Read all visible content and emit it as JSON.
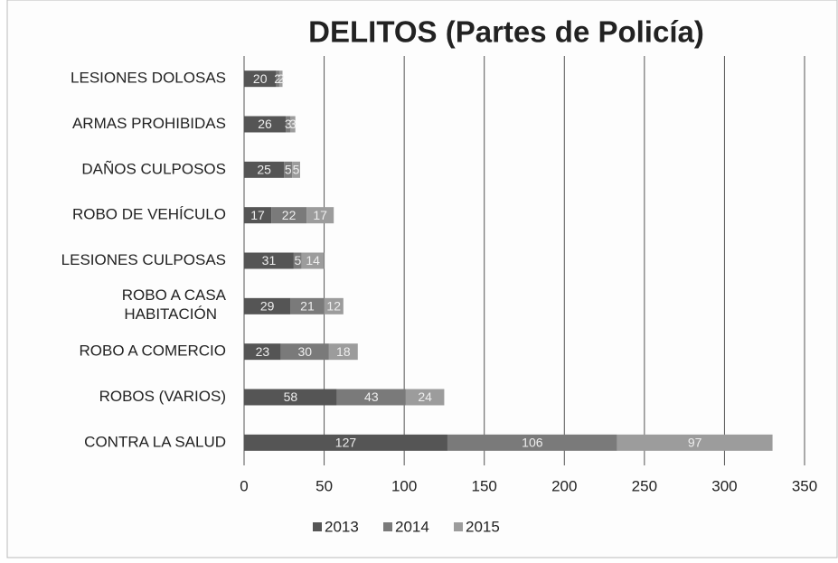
{
  "chart_data": {
    "type": "bar",
    "orientation": "horizontal",
    "stacked": true,
    "title": "DELITOS (Partes de Policía)",
    "categories": [
      "LESIONES DOLOSAS",
      "ARMAS PROHIBIDAS",
      "DAÑOS CULPOSOS",
      "ROBO DE VEHÍCULO",
      "LESIONES CULPOSAS",
      "ROBO A CASA HABITACIÓN",
      "ROBO A COMERCIO",
      "ROBOS (VARIOS)",
      "CONTRA LA SALUD"
    ],
    "series": [
      {
        "name": "2013",
        "color": "#555555",
        "values": [
          20,
          26,
          25,
          17,
          31,
          29,
          23,
          58,
          127
        ]
      },
      {
        "name": "2014",
        "color": "#7a7a7a",
        "values": [
          2,
          3,
          5,
          22,
          5,
          21,
          30,
          43,
          106
        ]
      },
      {
        "name": "2015",
        "color": "#9c9c9c",
        "values": [
          2,
          3,
          5,
          17,
          14,
          12,
          18,
          24,
          97
        ]
      }
    ],
    "xlim": [
      0,
      350
    ],
    "xticks": [
      0,
      50,
      100,
      150,
      200,
      250,
      300,
      350
    ],
    "grid": true,
    "legend": "bottom"
  }
}
